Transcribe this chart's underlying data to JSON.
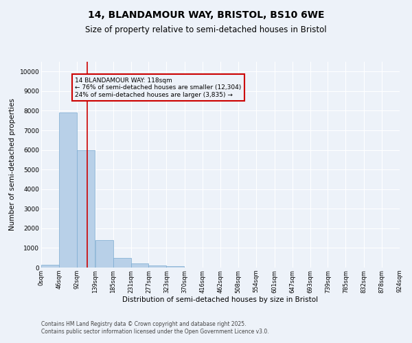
{
  "title_line1": "14, BLANDAMOUR WAY, BRISTOL, BS10 6WE",
  "title_line2": "Size of property relative to semi-detached houses in Bristol",
  "xlabel": "Distribution of semi-detached houses by size in Bristol",
  "ylabel": "Number of semi-detached properties",
  "bar_color": "#b8d0e8",
  "bar_edge_color": "#7aaad0",
  "redline_color": "#cc0000",
  "redline_x": 118,
  "annotation_title": "14 BLANDAMOUR WAY: 118sqm",
  "annotation_line1": "← 76% of semi-detached houses are smaller (12,304)",
  "annotation_line2": "24% of semi-detached houses are larger (3,835) →",
  "annotation_box_edge": "#cc0000",
  "footer_line1": "Contains HM Land Registry data © Crown copyright and database right 2025.",
  "footer_line2": "Contains public sector information licensed under the Open Government Licence v3.0.",
  "bin_edges": [
    0,
    46,
    92,
    139,
    185,
    231,
    277,
    323,
    370,
    416,
    462,
    508,
    554,
    601,
    647,
    693,
    739,
    785,
    832,
    878,
    924
  ],
  "bin_labels": [
    "0sqm",
    "46sqm",
    "92sqm",
    "139sqm",
    "185sqm",
    "231sqm",
    "277sqm",
    "323sqm",
    "370sqm",
    "416sqm",
    "462sqm",
    "508sqm",
    "554sqm",
    "601sqm",
    "647sqm",
    "693sqm",
    "739sqm",
    "785sqm",
    "832sqm",
    "878sqm",
    "924sqm"
  ],
  "bar_heights": [
    150,
    7900,
    6000,
    1400,
    490,
    210,
    120,
    60,
    0,
    0,
    0,
    0,
    0,
    0,
    0,
    0,
    0,
    0,
    0,
    0
  ],
  "ylim": [
    0,
    10500
  ],
  "yticks": [
    0,
    1000,
    2000,
    3000,
    4000,
    5000,
    6000,
    7000,
    8000,
    9000,
    10000
  ],
  "background_color": "#edf2f9",
  "grid_color": "#ffffff",
  "title_fontsize": 10,
  "subtitle_fontsize": 8.5,
  "axis_fontsize": 7.5,
  "tick_fontsize": 6.5,
  "footer_fontsize": 5.5
}
